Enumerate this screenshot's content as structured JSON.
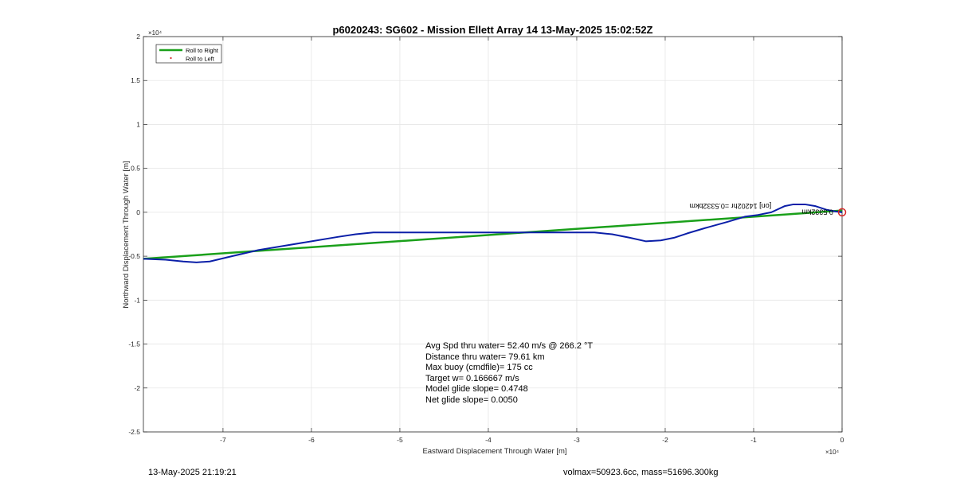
{
  "chart_data": {
    "type": "line",
    "title": "p6020243: SG602 - Mission Ellett Array 14 13-May-2025 15:02:52Z",
    "xlabel": "Eastward Displacement Through Water [m]",
    "ylabel": "Northward Displacement Through Water [m]",
    "x_exponent_label": "×10⁴",
    "y_exponent_label": "×10⁴",
    "xlim": [
      -79000,
      0
    ],
    "ylim": [
      -25000,
      20000
    ],
    "x_ticks": [
      -70000,
      -60000,
      -50000,
      -40000,
      -30000,
      -20000,
      -10000,
      0
    ],
    "x_tick_labels": [
      "-7",
      "-6",
      "-5",
      "-4",
      "-3",
      "-2",
      "-1",
      "0"
    ],
    "y_ticks": [
      20000,
      15000,
      10000,
      5000,
      0,
      -5000,
      -10000,
      -15000,
      -20000,
      -25000
    ],
    "y_tick_labels": [
      "2",
      "1.5",
      "1",
      "0.5",
      "0",
      "-0.5",
      "-1",
      "-1.5",
      "-2",
      "-2.5"
    ],
    "grid": true,
    "legend_position": "top-left",
    "legend": [
      {
        "label": "Roll to Right",
        "color": "#1aa01a",
        "marker": "line"
      },
      {
        "label": "Roll to Left",
        "color": "#d62728",
        "marker": "dot"
      }
    ],
    "series": [
      {
        "name": "Roll to Right",
        "color": "#1aa01a",
        "x": [
          -79000,
          0
        ],
        "y": [
          -5300,
          200
        ]
      },
      {
        "color": "#0b1fa8",
        "x": [
          -79000,
          -76500,
          -74500,
          -73000,
          -71500,
          -69000,
          -66000,
          -63000,
          -60000,
          -57000,
          -55000,
          -53000,
          -48000,
          -43000,
          -38000,
          -33000,
          -28000,
          -26000,
          -24000,
          -22200,
          -20500,
          -19000,
          -17500,
          -15500,
          -13000,
          -11000,
          -9500,
          -8000,
          -6500,
          -5500,
          -4200,
          -3000,
          -1800,
          -800,
          0
        ],
        "y": [
          -5300,
          -5400,
          -5600,
          -5700,
          -5600,
          -5000,
          -4300,
          -3800,
          -3300,
          -2800,
          -2500,
          -2300,
          -2300,
          -2300,
          -2300,
          -2300,
          -2300,
          -2500,
          -2900,
          -3300,
          -3200,
          -2900,
          -2400,
          -1800,
          -1100,
          -500,
          -300,
          0,
          700,
          900,
          900,
          700,
          300,
          100,
          0
        ]
      }
    ],
    "annotations": [
      {
        "text": "0.5332km",
        "x": -1000,
        "y": 300,
        "rotation": 180
      },
      {
        "text": "[on] 14202hr =0.5332bkm",
        "x": -8000,
        "y": 1000,
        "rotation": 180
      }
    ],
    "end_marker": {
      "x": 0,
      "y": 0,
      "color": "#d62728"
    }
  },
  "stats": [
    "Avg Spd thru water= 52.40 m/s @ 266.2 °T",
    "Distance thru water= 79.61 km",
    "Max buoy (cmdfile)= 175 cc",
    "Target w= 0.166667 m/s",
    "Model glide slope= 0.4748",
    "Net glide slope= 0.0050"
  ],
  "footer": {
    "left": "13-May-2025 21:19:21",
    "right": "volmax=50923.6cc, mass=51696.300kg"
  }
}
